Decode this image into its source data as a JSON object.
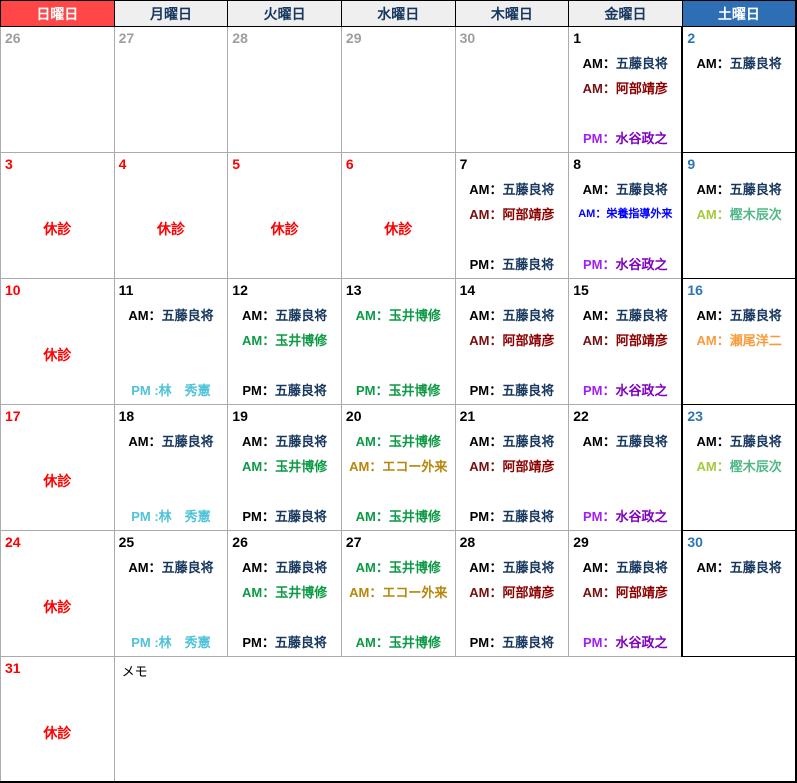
{
  "calendar": {
    "weekday_headers": [
      {
        "label": "日曜日",
        "bg": "#FF4747",
        "fg": "#FFFFFF"
      },
      {
        "label": "月曜日",
        "bg": "#EFEFEF",
        "fg": "#17375E"
      },
      {
        "label": "火曜日",
        "bg": "#EFEFEF",
        "fg": "#17375E"
      },
      {
        "label": "水曜日",
        "bg": "#EFEFEF",
        "fg": "#17375E"
      },
      {
        "label": "木曜日",
        "bg": "#EFEFEF",
        "fg": "#17375E"
      },
      {
        "label": "金曜日",
        "bg": "#EFEFEF",
        "fg": "#17375E"
      },
      {
        "label": "土曜日",
        "bg": "#2E6EB5",
        "fg": "#FFFFFF"
      }
    ],
    "closed_label": "休診",
    "closed_color": "#FF0000",
    "memo_label": "メモ",
    "date_colors": {
      "prev": "#9E9E9E",
      "sun": "#FF0000",
      "holiday": "#FF0000",
      "weekday": "#000000",
      "sat": "#2E75B6"
    },
    "grid_colors": {
      "inner": "#ABABAB",
      "outer": "#000000"
    },
    "weeks": [
      {
        "days": [
          {
            "date": "26",
            "kind": "prev",
            "slots": [
              null,
              null,
              null,
              null
            ]
          },
          {
            "date": "27",
            "kind": "prev",
            "slots": [
              null,
              null,
              null,
              null
            ]
          },
          {
            "date": "28",
            "kind": "prev",
            "slots": [
              null,
              null,
              null,
              null
            ]
          },
          {
            "date": "29",
            "kind": "prev",
            "slots": [
              null,
              null,
              null,
              null
            ]
          },
          {
            "date": "30",
            "kind": "prev",
            "slots": [
              null,
              null,
              null,
              null
            ]
          },
          {
            "date": "1",
            "kind": "weekday",
            "slots": [
              {
                "label": "AM：",
                "name": "五藤良将",
                "label_color": "#000000",
                "name_color": "#17375E"
              },
              {
                "label": "AM：",
                "name": "阿部靖彦",
                "label_color": "#771111",
                "name_color": "#8B0000"
              },
              null,
              {
                "label": "PM：",
                "name": "水谷政之",
                "label_color": "#A020F0",
                "name_color": "#7F00BF"
              }
            ]
          },
          {
            "date": "2",
            "kind": "sat",
            "slots": [
              {
                "label": "AM：",
                "name": "五藤良将",
                "label_color": "#000000",
                "name_color": "#17375E"
              },
              null,
              null,
              null
            ]
          }
        ]
      },
      {
        "days": [
          {
            "date": "3",
            "kind": "sun",
            "closed": true
          },
          {
            "date": "4",
            "kind": "holiday",
            "closed": true
          },
          {
            "date": "5",
            "kind": "holiday",
            "closed": true
          },
          {
            "date": "6",
            "kind": "holiday",
            "closed": true
          },
          {
            "date": "7",
            "kind": "weekday",
            "slots": [
              {
                "label": "AM：",
                "name": "五藤良将",
                "label_color": "#000000",
                "name_color": "#17375E"
              },
              {
                "label": "AM：",
                "name": "阿部靖彦",
                "label_color": "#771111",
                "name_color": "#8B0000"
              },
              null,
              {
                "label": "PM：",
                "name": "五藤良将",
                "label_color": "#000000",
                "name_color": "#17375E"
              }
            ]
          },
          {
            "date": "8",
            "kind": "weekday",
            "slots": [
              {
                "label": "AM：",
                "name": "五藤良将",
                "label_color": "#000000",
                "name_color": "#17375E"
              },
              {
                "label": "AM：",
                "name": "栄養指導外来",
                "label_color": "#0000FF",
                "name_color": "#0000FF",
                "small": true
              },
              null,
              {
                "label": "PM：",
                "name": "水谷政之",
                "label_color": "#A020F0",
                "name_color": "#7F00BF"
              }
            ]
          },
          {
            "date": "9",
            "kind": "sat",
            "slots": [
              {
                "label": "AM：",
                "name": "五藤良将",
                "label_color": "#000000",
                "name_color": "#17375E"
              },
              {
                "label": "AM：",
                "name": "樫木辰次",
                "label_color": "#A6C83C",
                "name_color": "#52B788"
              },
              null,
              null
            ]
          }
        ]
      },
      {
        "days": [
          {
            "date": "10",
            "kind": "sun",
            "closed": true
          },
          {
            "date": "11",
            "kind": "weekday",
            "slots": [
              {
                "label": "AM：",
                "name": "五藤良将",
                "label_color": "#000000",
                "name_color": "#17375E"
              },
              null,
              null,
              {
                "label": "PM :",
                "name": "林　秀憲",
                "label_color": "#4FC3D9",
                "name_color": "#4FC3D9"
              }
            ]
          },
          {
            "date": "12",
            "kind": "weekday",
            "slots": [
              {
                "label": "AM：",
                "name": "五藤良将",
                "label_color": "#000000",
                "name_color": "#17375E"
              },
              {
                "label": "AM：",
                "name": "玉井博修",
                "label_color": "#0C9A45",
                "name_color": "#0C9A45"
              },
              null,
              {
                "label": "PM：",
                "name": "五藤良将",
                "label_color": "#000000",
                "name_color": "#17375E"
              }
            ]
          },
          {
            "date": "13",
            "kind": "weekday",
            "slots": [
              {
                "label": "AM：",
                "name": "玉井博修",
                "label_color": "#0C9A45",
                "name_color": "#0C9A45"
              },
              null,
              null,
              {
                "label": "PM：",
                "name": "玉井博修",
                "label_color": "#0C9A45",
                "name_color": "#0C9A45"
              }
            ]
          },
          {
            "date": "14",
            "kind": "weekday",
            "slots": [
              {
                "label": "AM：",
                "name": "五藤良将",
                "label_color": "#000000",
                "name_color": "#17375E"
              },
              {
                "label": "AM：",
                "name": "阿部靖彦",
                "label_color": "#771111",
                "name_color": "#8B0000"
              },
              null,
              {
                "label": "PM：",
                "name": "五藤良将",
                "label_color": "#000000",
                "name_color": "#17375E"
              }
            ]
          },
          {
            "date": "15",
            "kind": "weekday",
            "slots": [
              {
                "label": "AM：",
                "name": "五藤良将",
                "label_color": "#000000",
                "name_color": "#17375E"
              },
              {
                "label": "AM：",
                "name": "阿部靖彦",
                "label_color": "#771111",
                "name_color": "#8B0000"
              },
              null,
              {
                "label": "PM：",
                "name": "水谷政之",
                "label_color": "#A020F0",
                "name_color": "#7F00BF"
              }
            ]
          },
          {
            "date": "16",
            "kind": "sat",
            "slots": [
              {
                "label": "AM：",
                "name": "五藤良将",
                "label_color": "#000000",
                "name_color": "#17375E"
              },
              {
                "label": "AM：",
                "name": "瀬尾洋二",
                "label_color": "#F89B3C",
                "name_color": "#F89B3C"
              },
              null,
              null
            ]
          }
        ]
      },
      {
        "days": [
          {
            "date": "17",
            "kind": "sun",
            "closed": true
          },
          {
            "date": "18",
            "kind": "weekday",
            "slots": [
              {
                "label": "AM：",
                "name": "五藤良将",
                "label_color": "#000000",
                "name_color": "#17375E"
              },
              null,
              null,
              {
                "label": "PM :",
                "name": "林　秀憲",
                "label_color": "#4FC3D9",
                "name_color": "#4FC3D9"
              }
            ]
          },
          {
            "date": "19",
            "kind": "weekday",
            "slots": [
              {
                "label": "AM：",
                "name": "五藤良将",
                "label_color": "#000000",
                "name_color": "#17375E"
              },
              {
                "label": "AM：",
                "name": "玉井博修",
                "label_color": "#0C9A45",
                "name_color": "#0C9A45"
              },
              null,
              {
                "label": "PM：",
                "name": "五藤良将",
                "label_color": "#000000",
                "name_color": "#17375E"
              }
            ]
          },
          {
            "date": "20",
            "kind": "weekday",
            "slots": [
              {
                "label": "AM：",
                "name": "玉井博修",
                "label_color": "#0C9A45",
                "name_color": "#0C9A45"
              },
              {
                "label": "AM：",
                "name": "エコー外来",
                "label_color": "#B8860B",
                "name_color": "#B8860B"
              },
              null,
              {
                "label": "AM：",
                "name": "玉井博修",
                "label_color": "#0C9A45",
                "name_color": "#0C9A45"
              }
            ]
          },
          {
            "date": "21",
            "kind": "weekday",
            "slots": [
              {
                "label": "AM：",
                "name": "五藤良将",
                "label_color": "#000000",
                "name_color": "#17375E"
              },
              {
                "label": "AM：",
                "name": "阿部靖彦",
                "label_color": "#771111",
                "name_color": "#8B0000"
              },
              null,
              {
                "label": "PM：",
                "name": "五藤良将",
                "label_color": "#000000",
                "name_color": "#17375E"
              }
            ]
          },
          {
            "date": "22",
            "kind": "weekday",
            "slots": [
              {
                "label": "AM：",
                "name": "五藤良将",
                "label_color": "#000000",
                "name_color": "#17375E"
              },
              null,
              null,
              {
                "label": "PM：",
                "name": "水谷政之",
                "label_color": "#A020F0",
                "name_color": "#7F00BF"
              }
            ]
          },
          {
            "date": "23",
            "kind": "sat",
            "slots": [
              {
                "label": "AM：",
                "name": "五藤良将",
                "label_color": "#000000",
                "name_color": "#17375E"
              },
              {
                "label": "AM：",
                "name": "樫木辰次",
                "label_color": "#A6C83C",
                "name_color": "#52B788"
              },
              null,
              null
            ]
          }
        ]
      },
      {
        "days": [
          {
            "date": "24",
            "kind": "sun",
            "closed": true
          },
          {
            "date": "25",
            "kind": "weekday",
            "slots": [
              {
                "label": "AM：",
                "name": "五藤良将",
                "label_color": "#000000",
                "name_color": "#17375E"
              },
              null,
              null,
              {
                "label": "PM :",
                "name": "林　秀憲",
                "label_color": "#4FC3D9",
                "name_color": "#4FC3D9"
              }
            ]
          },
          {
            "date": "26",
            "kind": "weekday",
            "slots": [
              {
                "label": "AM：",
                "name": "五藤良将",
                "label_color": "#000000",
                "name_color": "#17375E"
              },
              {
                "label": "AM：",
                "name": "玉井博修",
                "label_color": "#0C9A45",
                "name_color": "#0C9A45"
              },
              null,
              {
                "label": "PM：",
                "name": "五藤良将",
                "label_color": "#000000",
                "name_color": "#17375E"
              }
            ]
          },
          {
            "date": "27",
            "kind": "weekday",
            "slots": [
              {
                "label": "AM：",
                "name": "玉井博修",
                "label_color": "#0C9A45",
                "name_color": "#0C9A45"
              },
              {
                "label": "AM：",
                "name": "エコー外来",
                "label_color": "#B8860B",
                "name_color": "#B8860B"
              },
              null,
              {
                "label": "AM：",
                "name": "玉井博修",
                "label_color": "#0C9A45",
                "name_color": "#0C9A45"
              }
            ]
          },
          {
            "date": "28",
            "kind": "weekday",
            "slots": [
              {
                "label": "AM：",
                "name": "五藤良将",
                "label_color": "#000000",
                "name_color": "#17375E"
              },
              {
                "label": "AM：",
                "name": "阿部靖彦",
                "label_color": "#771111",
                "name_color": "#8B0000"
              },
              null,
              {
                "label": "PM：",
                "name": "五藤良将",
                "label_color": "#000000",
                "name_color": "#17375E"
              }
            ]
          },
          {
            "date": "29",
            "kind": "weekday",
            "slots": [
              {
                "label": "AM：",
                "name": "五藤良将",
                "label_color": "#000000",
                "name_color": "#17375E"
              },
              {
                "label": "AM：",
                "name": "阿部靖彦",
                "label_color": "#771111",
                "name_color": "#8B0000"
              },
              null,
              {
                "label": "PM：",
                "name": "水谷政之",
                "label_color": "#A020F0",
                "name_color": "#7F00BF"
              }
            ]
          },
          {
            "date": "30",
            "kind": "sat",
            "slots": [
              {
                "label": "AM：",
                "name": "五藤良将",
                "label_color": "#000000",
                "name_color": "#17375E"
              },
              null,
              null,
              null
            ]
          }
        ]
      }
    ],
    "last_row": {
      "day": {
        "date": "31",
        "kind": "sun",
        "closed": true
      }
    }
  }
}
